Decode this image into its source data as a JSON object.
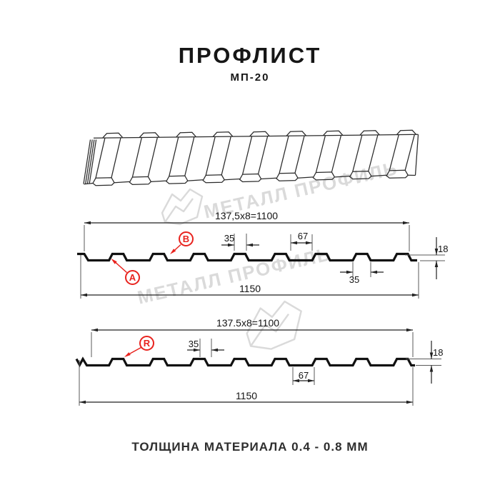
{
  "header": {
    "title": "ПРОФЛИСТ",
    "subtitle": "МП-20"
  },
  "footer": {
    "note": "ТОЛЩИНА МАТЕРИАЛА 0.4 - 0.8 ММ"
  },
  "watermark": {
    "text": "МЕТАЛЛ ПРОФИЛЬ"
  },
  "colors": {
    "accent_red": "#e8231e",
    "line": "#222222",
    "ext_line": "#5a5a5a",
    "profile": "#111111",
    "sheet_3d": "#2b2b2b",
    "watermark": "#dadada"
  },
  "profile_front": {
    "label_a": "A",
    "label_b": "B",
    "dim_top": "137,5x8=1100",
    "dim_rib_top": "35",
    "dim_gap": "67",
    "dim_height": "18",
    "dim_rib_bottom": "35",
    "dim_total": "1150"
  },
  "profile_reverse": {
    "label_r": "R",
    "dim_top": "137.5x8=1100",
    "dim_rib_top": "35",
    "dim_gap": "67",
    "dim_height": "18",
    "dim_total": "1150"
  }
}
